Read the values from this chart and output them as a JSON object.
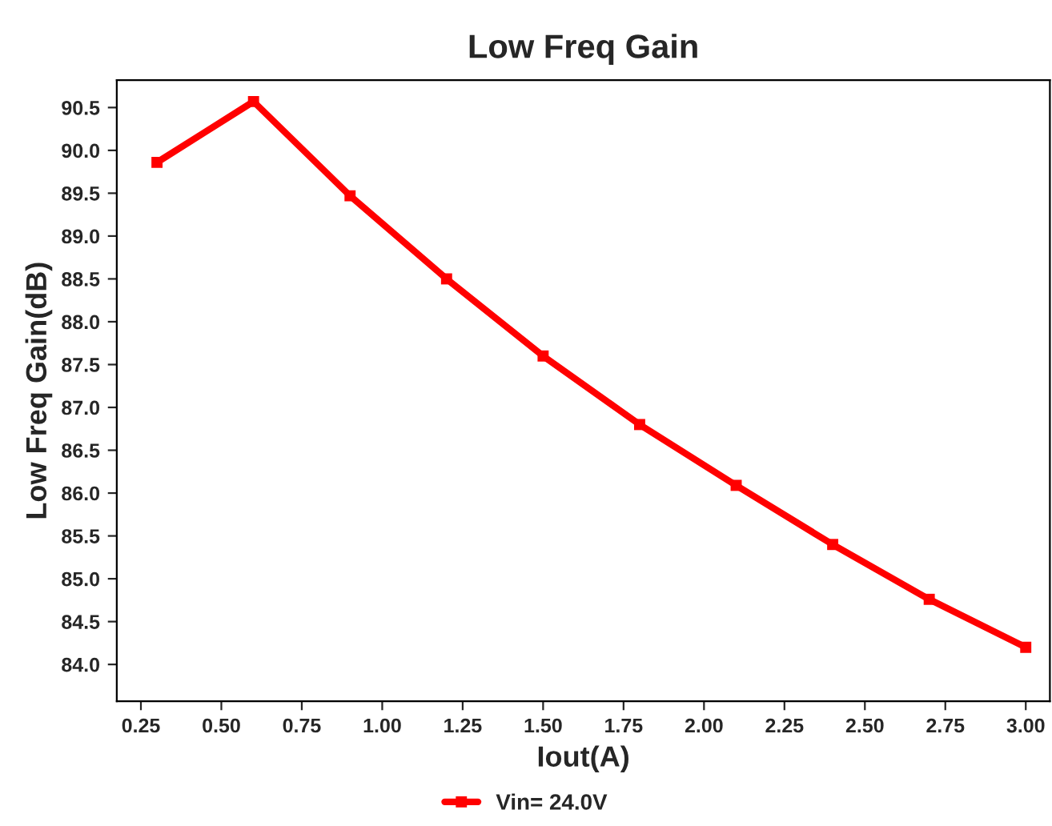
{
  "chart_data": {
    "type": "line",
    "title": "Low Freq Gain",
    "xlabel": "Iout(A)",
    "ylabel": "Low Freq Gain(dB)",
    "x": [
      0.3,
      0.6,
      0.9,
      1.2,
      1.5,
      1.8,
      2.1,
      2.4,
      2.7,
      3.0
    ],
    "series": [
      {
        "name": "Vin= 24.0V",
        "color": "#ff0000",
        "values": [
          89.86,
          90.57,
          89.47,
          88.5,
          87.6,
          86.8,
          86.09,
          85.4,
          84.76,
          84.2
        ]
      }
    ],
    "xlim": [
      0.175,
      3.075
    ],
    "xticks": [
      {
        "value": 0.25,
        "label": "0.25"
      },
      {
        "value": 0.5,
        "label": "0.50"
      },
      {
        "value": 0.75,
        "label": "0.75"
      },
      {
        "value": 1.0,
        "label": "1.00"
      },
      {
        "value": 1.25,
        "label": "1.25"
      },
      {
        "value": 1.5,
        "label": "1.50"
      },
      {
        "value": 1.75,
        "label": "1.75"
      },
      {
        "value": 2.0,
        "label": "2.00"
      },
      {
        "value": 2.25,
        "label": "2.25"
      },
      {
        "value": 2.5,
        "label": "2.50"
      },
      {
        "value": 2.75,
        "label": "2.75"
      },
      {
        "value": 3.0,
        "label": "3.00"
      }
    ],
    "ylim": [
      83.57,
      90.82
    ],
    "yticks": [
      {
        "value": 84.0,
        "label": "84.0"
      },
      {
        "value": 84.5,
        "label": "84.5"
      },
      {
        "value": 85.0,
        "label": "85.0"
      },
      {
        "value": 85.5,
        "label": "85.5"
      },
      {
        "value": 86.0,
        "label": "86.0"
      },
      {
        "value": 86.5,
        "label": "86.5"
      },
      {
        "value": 87.0,
        "label": "87.0"
      },
      {
        "value": 87.5,
        "label": "87.5"
      },
      {
        "value": 88.0,
        "label": "88.0"
      },
      {
        "value": 88.5,
        "label": "88.5"
      },
      {
        "value": 89.0,
        "label": "89.0"
      },
      {
        "value": 89.5,
        "label": "89.5"
      },
      {
        "value": 90.0,
        "label": "90.0"
      },
      {
        "value": 90.5,
        "label": "90.5"
      }
    ],
    "grid": false,
    "legend": "bottom",
    "marker": "square",
    "line_style": "solid"
  }
}
